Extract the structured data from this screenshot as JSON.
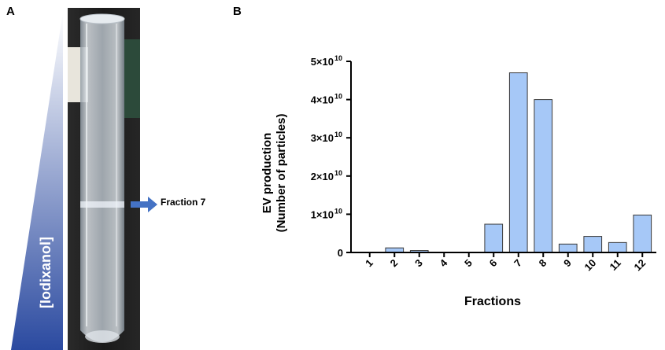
{
  "panel_a": {
    "label": "A",
    "annotation": "Fraction 7",
    "gradient_label": "[Iodixanol]"
  },
  "panel_b": {
    "label": "B"
  },
  "colors": {
    "bar_fill": "#a6c8f7",
    "bar_stroke": "#3a3a3a",
    "arrow": "#4472c4",
    "gradient_top": "#ffffff",
    "gradient_bottom": "#2b4aa0"
  },
  "chart_data": {
    "type": "bar",
    "categories": [
      "1",
      "2",
      "3",
      "4",
      "5",
      "6",
      "7",
      "8",
      "9",
      "10",
      "11",
      "12"
    ],
    "values": [
      0,
      1200000000.0,
      500000000.0,
      0,
      0,
      7400000000.0,
      47000000000.0,
      40000000000.0,
      2200000000.0,
      4200000000.0,
      2600000000.0,
      9800000000.0
    ],
    "ylim": [
      0,
      50000000000.0
    ],
    "yticks": [
      0,
      10000000000.0,
      20000000000.0,
      30000000000.0,
      40000000000.0,
      50000000000.0
    ],
    "ytick_labels": [
      {
        "base": "0",
        "exp": ""
      },
      {
        "base": "1×10",
        "exp": "10"
      },
      {
        "base": "2×10",
        "exp": "10"
      },
      {
        "base": "3×10",
        "exp": "10"
      },
      {
        "base": "4×10",
        "exp": "10"
      },
      {
        "base": "5×10",
        "exp": "10"
      }
    ],
    "xlabel": "Fractions",
    "ylabel_line1": "EV production",
    "ylabel_line2": "(Number of particles)"
  }
}
